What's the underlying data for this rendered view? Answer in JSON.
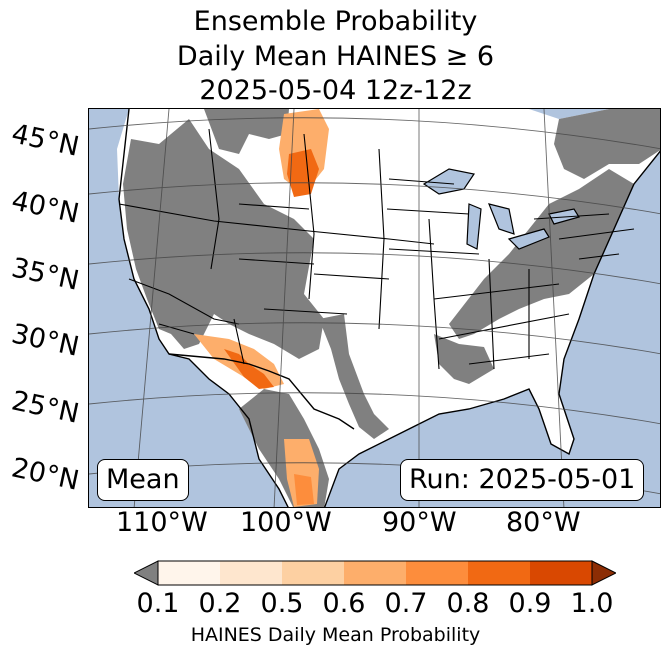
{
  "title": {
    "line1": "Ensemble Probability",
    "line2": "Daily Mean HAINES ≥ 6",
    "line3": "2025-05-04 12z-12z"
  },
  "map": {
    "region": "CONUS",
    "background_ocean_color": "#b0c4de",
    "no_data_color": "#808080",
    "land_color": "#ffffff",
    "lat_labels": [
      "45°N",
      "40°N",
      "35°N",
      "30°N",
      "25°N",
      "20°N"
    ],
    "lon_labels": [
      "110°W",
      "100°W",
      "90°W",
      "80°W"
    ],
    "mean_label": "Mean",
    "run_label": "Run: 2025-05-01"
  },
  "colorbar": {
    "label": "HAINES Daily Mean Probability",
    "ticks": [
      "0.1",
      "0.2",
      "0.5",
      "0.6",
      "0.7",
      "0.8",
      "0.9",
      "1.0"
    ],
    "colors": [
      "#fff5eb",
      "#fee6ce",
      "#fdd0a2",
      "#fdae6b",
      "#fd8d3c",
      "#f16913",
      "#d94801"
    ],
    "under_color": "#808080",
    "over_color": "#8c2d04"
  }
}
